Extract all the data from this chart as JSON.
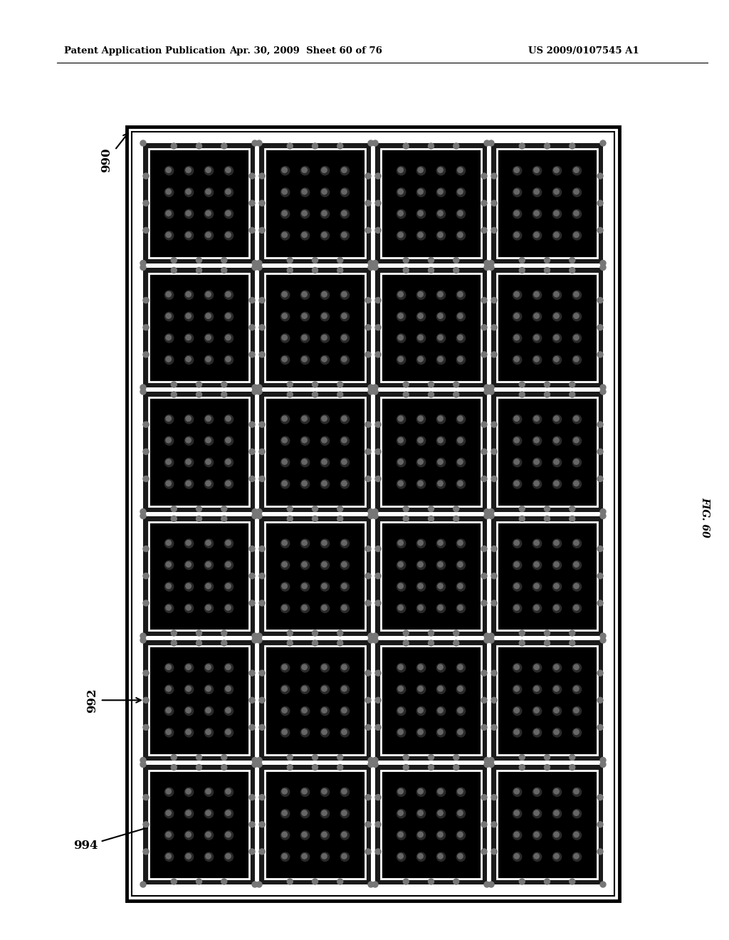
{
  "header_left": "Patent Application Publication",
  "header_mid": "Apr. 30, 2009  Sheet 60 of 76",
  "header_right": "US 2009/0107545 A1",
  "fig_label": "FIG. 60",
  "label_990": "990",
  "label_992": "992",
  "label_994": "994",
  "grid_rows": 6,
  "grid_cols": 4,
  "dot_rows": 4,
  "dot_cols": 4,
  "background_color": "#ffffff"
}
